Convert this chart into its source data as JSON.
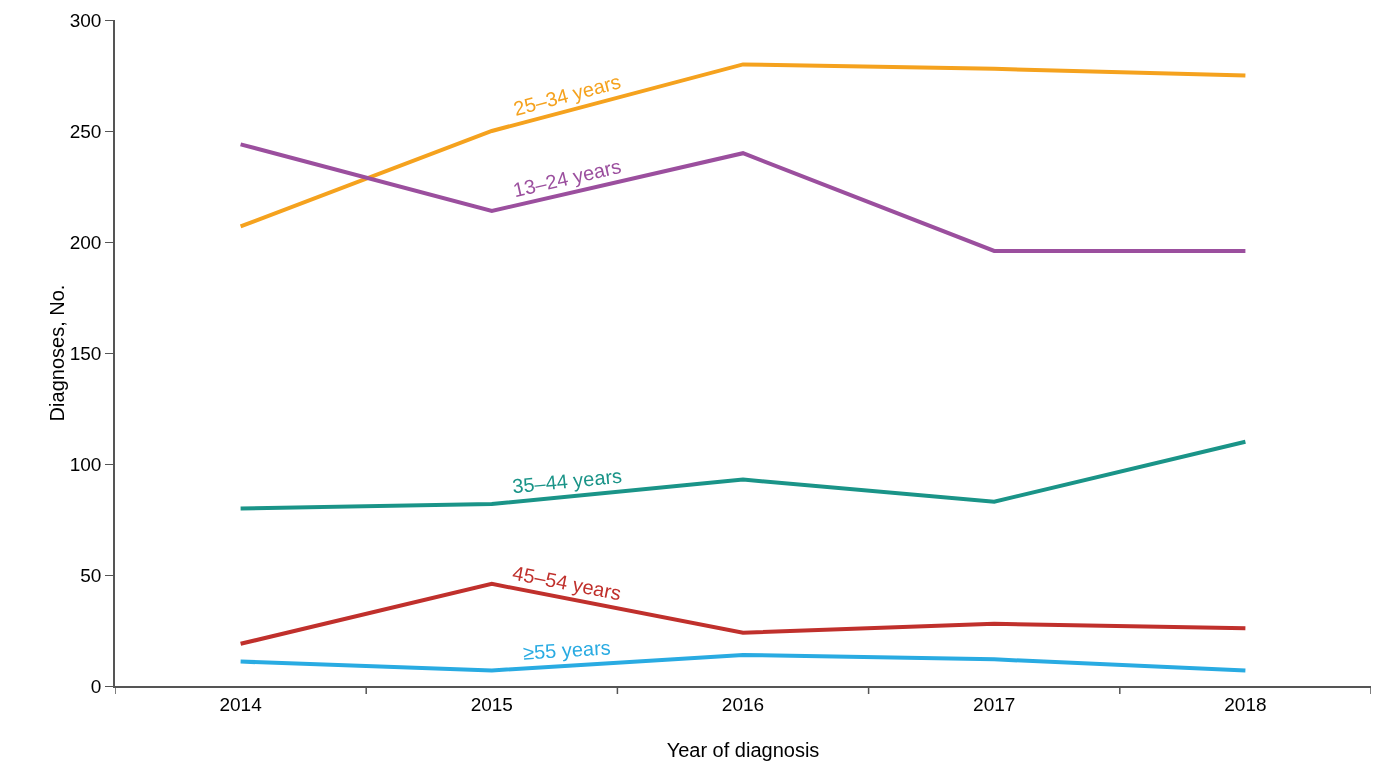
{
  "chart_data": {
    "type": "line",
    "xlabel": "Year of diagnosis",
    "ylabel": "Diagnoses, No.",
    "categories": [
      "2014",
      "2015",
      "2016",
      "2017",
      "2018"
    ],
    "ylim": [
      0,
      300
    ],
    "yticks": [
      0,
      50,
      100,
      150,
      200,
      250,
      300
    ],
    "grid": false,
    "legend": false,
    "marker": "none",
    "line_style": "solid",
    "series": [
      {
        "name": "25–34 years",
        "color": "#f5a21e",
        "values": [
          207,
          250,
          280,
          278,
          275
        ]
      },
      {
        "name": "13–24 years",
        "color": "#9b4f9e",
        "values": [
          244,
          214,
          240,
          196,
          196
        ]
      },
      {
        "name": "35–44 years",
        "color": "#1a9488",
        "values": [
          80,
          82,
          93,
          83,
          110
        ]
      },
      {
        "name": "45–54 years",
        "color": "#c0302c",
        "values": [
          19,
          46,
          24,
          28,
          26
        ]
      },
      {
        "name": "≥55 years",
        "color": "#29abe2",
        "values": [
          11,
          7,
          14,
          12,
          7
        ]
      }
    ]
  }
}
